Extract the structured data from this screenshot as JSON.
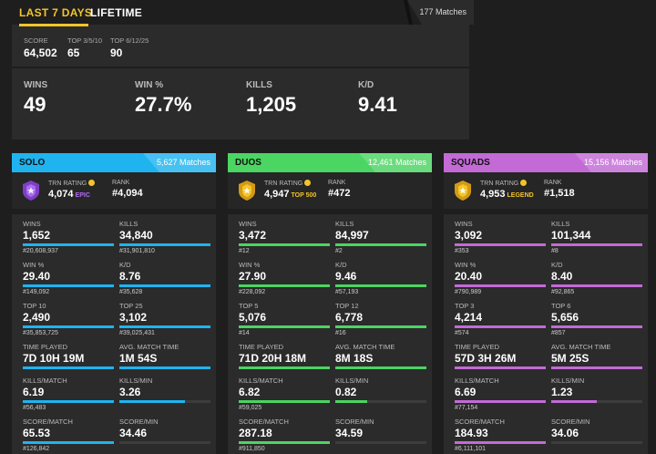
{
  "header": {
    "tab_active": "LAST 7 DAYS",
    "tab_other": "LIFETIME",
    "matches": "177 Matches",
    "score_label": "SCORE",
    "score": "64,502",
    "top1_label": "TOP 3/5/10",
    "top1": "65",
    "top2_label": "TOP 6/12/25",
    "top2": "90",
    "wins_label": "WINS",
    "wins": "49",
    "winpct_label": "WIN %",
    "winpct": "27.7%",
    "kills_label": "KILLS",
    "kills": "1,205",
    "kd_label": "K/D",
    "kd": "9.41"
  },
  "colors": {
    "solo": "#1fb4f0",
    "duos": "#4bd562",
    "squads": "#c36ad6",
    "accent": "#f2c52b"
  },
  "modes": [
    {
      "name": "SOLO",
      "matches": "5,627 Matches",
      "rating_label": "TRN RATING",
      "rating": "4,074",
      "tier": "EPIC",
      "tier_color": "#b06cf0",
      "rank_label": "RANK",
      "rank": "#4,094",
      "badge_icon": "epic-shield-icon",
      "stats": [
        {
          "label": "WINS",
          "value": "1,652",
          "sub": "#20,608,937",
          "fill": 1.0
        },
        {
          "label": "KILLS",
          "value": "34,840",
          "sub": "#31,901,810",
          "fill": 1.0
        },
        {
          "label": "WIN %",
          "value": "29.40",
          "sub": "#149,092",
          "fill": 1.0
        },
        {
          "label": "K/D",
          "value": "8.76",
          "sub": "#35,628",
          "fill": 1.0
        },
        {
          "label": "TOP 10",
          "value": "2,490",
          "sub": "#35,853,725",
          "fill": 1.0
        },
        {
          "label": "TOP 25",
          "value": "3,102",
          "sub": "#39,025,431",
          "fill": 1.0
        },
        {
          "label": "TIME PLAYED",
          "value": "7D 10H 19M",
          "sub": "",
          "fill": 1.0
        },
        {
          "label": "AVG. MATCH TIME",
          "value": "1M 54S",
          "sub": "",
          "fill": 1.0
        },
        {
          "label": "KILLS/MATCH",
          "value": "6.19",
          "sub": "#56,483",
          "fill": 1.0
        },
        {
          "label": "KILLS/MIN",
          "value": "3.26",
          "sub": "",
          "fill": 0.72
        },
        {
          "label": "SCORE/MATCH",
          "value": "65.53",
          "sub": "#126,842",
          "fill": 1.0
        },
        {
          "label": "SCORE/MIN",
          "value": "34.46",
          "sub": "",
          "fill": 0.0
        }
      ]
    },
    {
      "name": "DUOS",
      "matches": "12,461 Matches",
      "rating_label": "TRN RATING",
      "rating": "4,947",
      "tier": "TOP 500",
      "tier_color": "#f2c52b",
      "rank_label": "RANK",
      "rank": "#472",
      "badge_icon": "gold-shield-icon",
      "stats": [
        {
          "label": "WINS",
          "value": "3,472",
          "sub": "#12",
          "fill": 1.0
        },
        {
          "label": "KILLS",
          "value": "84,997",
          "sub": "#2",
          "fill": 1.0
        },
        {
          "label": "WIN %",
          "value": "27.90",
          "sub": "#228,092",
          "fill": 1.0
        },
        {
          "label": "K/D",
          "value": "9.46",
          "sub": "#57,193",
          "fill": 1.0
        },
        {
          "label": "TOP 5",
          "value": "5,076",
          "sub": "#14",
          "fill": 1.0
        },
        {
          "label": "TOP 12",
          "value": "6,778",
          "sub": "#16",
          "fill": 1.0
        },
        {
          "label": "TIME PLAYED",
          "value": "71D 20H 18M",
          "sub": "",
          "fill": 1.0
        },
        {
          "label": "AVG. MATCH TIME",
          "value": "8M 18S",
          "sub": "",
          "fill": 1.0
        },
        {
          "label": "KILLS/MATCH",
          "value": "6.82",
          "sub": "#59,025",
          "fill": 1.0
        },
        {
          "label": "KILLS/MIN",
          "value": "0.82",
          "sub": "",
          "fill": 0.35
        },
        {
          "label": "SCORE/MATCH",
          "value": "287.18",
          "sub": "#911,850",
          "fill": 1.0
        },
        {
          "label": "SCORE/MIN",
          "value": "34.59",
          "sub": "",
          "fill": 0.0
        }
      ]
    },
    {
      "name": "SQUADS",
      "matches": "15,156 Matches",
      "rating_label": "TRN RATING",
      "rating": "4,953",
      "tier": "LEGEND",
      "tier_color": "#f2c52b",
      "rank_label": "RANK",
      "rank": "#1,518",
      "badge_icon": "gold-shield-icon",
      "stats": [
        {
          "label": "WINS",
          "value": "3,092",
          "sub": "#353",
          "fill": 1.0
        },
        {
          "label": "KILLS",
          "value": "101,344",
          "sub": "#8",
          "fill": 1.0
        },
        {
          "label": "WIN %",
          "value": "20.40",
          "sub": "#790,989",
          "fill": 1.0
        },
        {
          "label": "K/D",
          "value": "8.40",
          "sub": "#92,865",
          "fill": 1.0
        },
        {
          "label": "TOP 3",
          "value": "4,214",
          "sub": "#574",
          "fill": 1.0
        },
        {
          "label": "TOP 6",
          "value": "5,656",
          "sub": "#857",
          "fill": 1.0
        },
        {
          "label": "TIME PLAYED",
          "value": "57D 3H 26M",
          "sub": "",
          "fill": 1.0
        },
        {
          "label": "AVG. MATCH TIME",
          "value": "5M 25S",
          "sub": "",
          "fill": 1.0
        },
        {
          "label": "KILLS/MATCH",
          "value": "6.69",
          "sub": "#77,154",
          "fill": 1.0
        },
        {
          "label": "KILLS/MIN",
          "value": "1.23",
          "sub": "",
          "fill": 0.5
        },
        {
          "label": "SCORE/MATCH",
          "value": "184.93",
          "sub": "#6,111,101",
          "fill": 1.0
        },
        {
          "label": "SCORE/MIN",
          "value": "34.06",
          "sub": "",
          "fill": 0.0
        }
      ]
    }
  ]
}
